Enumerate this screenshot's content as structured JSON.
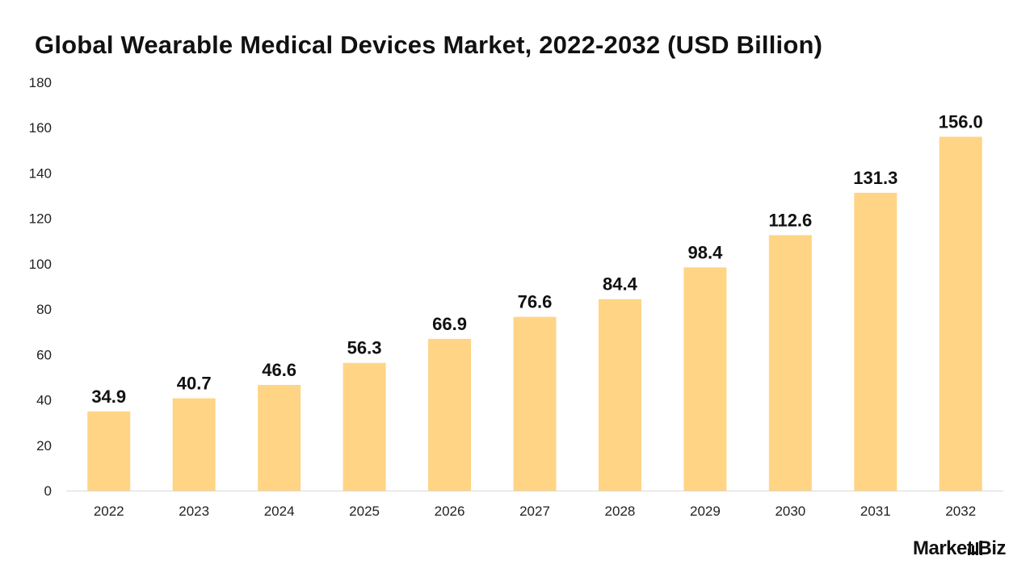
{
  "chart_data": {
    "type": "bar",
    "title": "Global Wearable Medical Devices Market, 2022-2032 (USD Billion)",
    "xlabel": "",
    "ylabel": "",
    "categories": [
      "2022",
      "2023",
      "2024",
      "2025",
      "2026",
      "2027",
      "2028",
      "2029",
      "2030",
      "2031",
      "2032"
    ],
    "values": [
      34.9,
      40.7,
      46.6,
      56.3,
      66.9,
      76.6,
      84.4,
      98.4,
      112.6,
      131.3,
      156.0
    ],
    "data_labels": [
      "34.9",
      "40.7",
      "46.6",
      "56.3",
      "66.9",
      "76.6",
      "84.4",
      "98.4",
      "112.6",
      "131.3",
      "156.0"
    ],
    "ylim": [
      0,
      180
    ],
    "yticks": [
      0,
      20,
      40,
      60,
      80,
      100,
      120,
      140,
      160,
      180
    ],
    "grid": false,
    "bar_color": "#FFD485",
    "axis_color": "#D9D9D9"
  },
  "branding": {
    "logo_text": "Market.Biz"
  }
}
